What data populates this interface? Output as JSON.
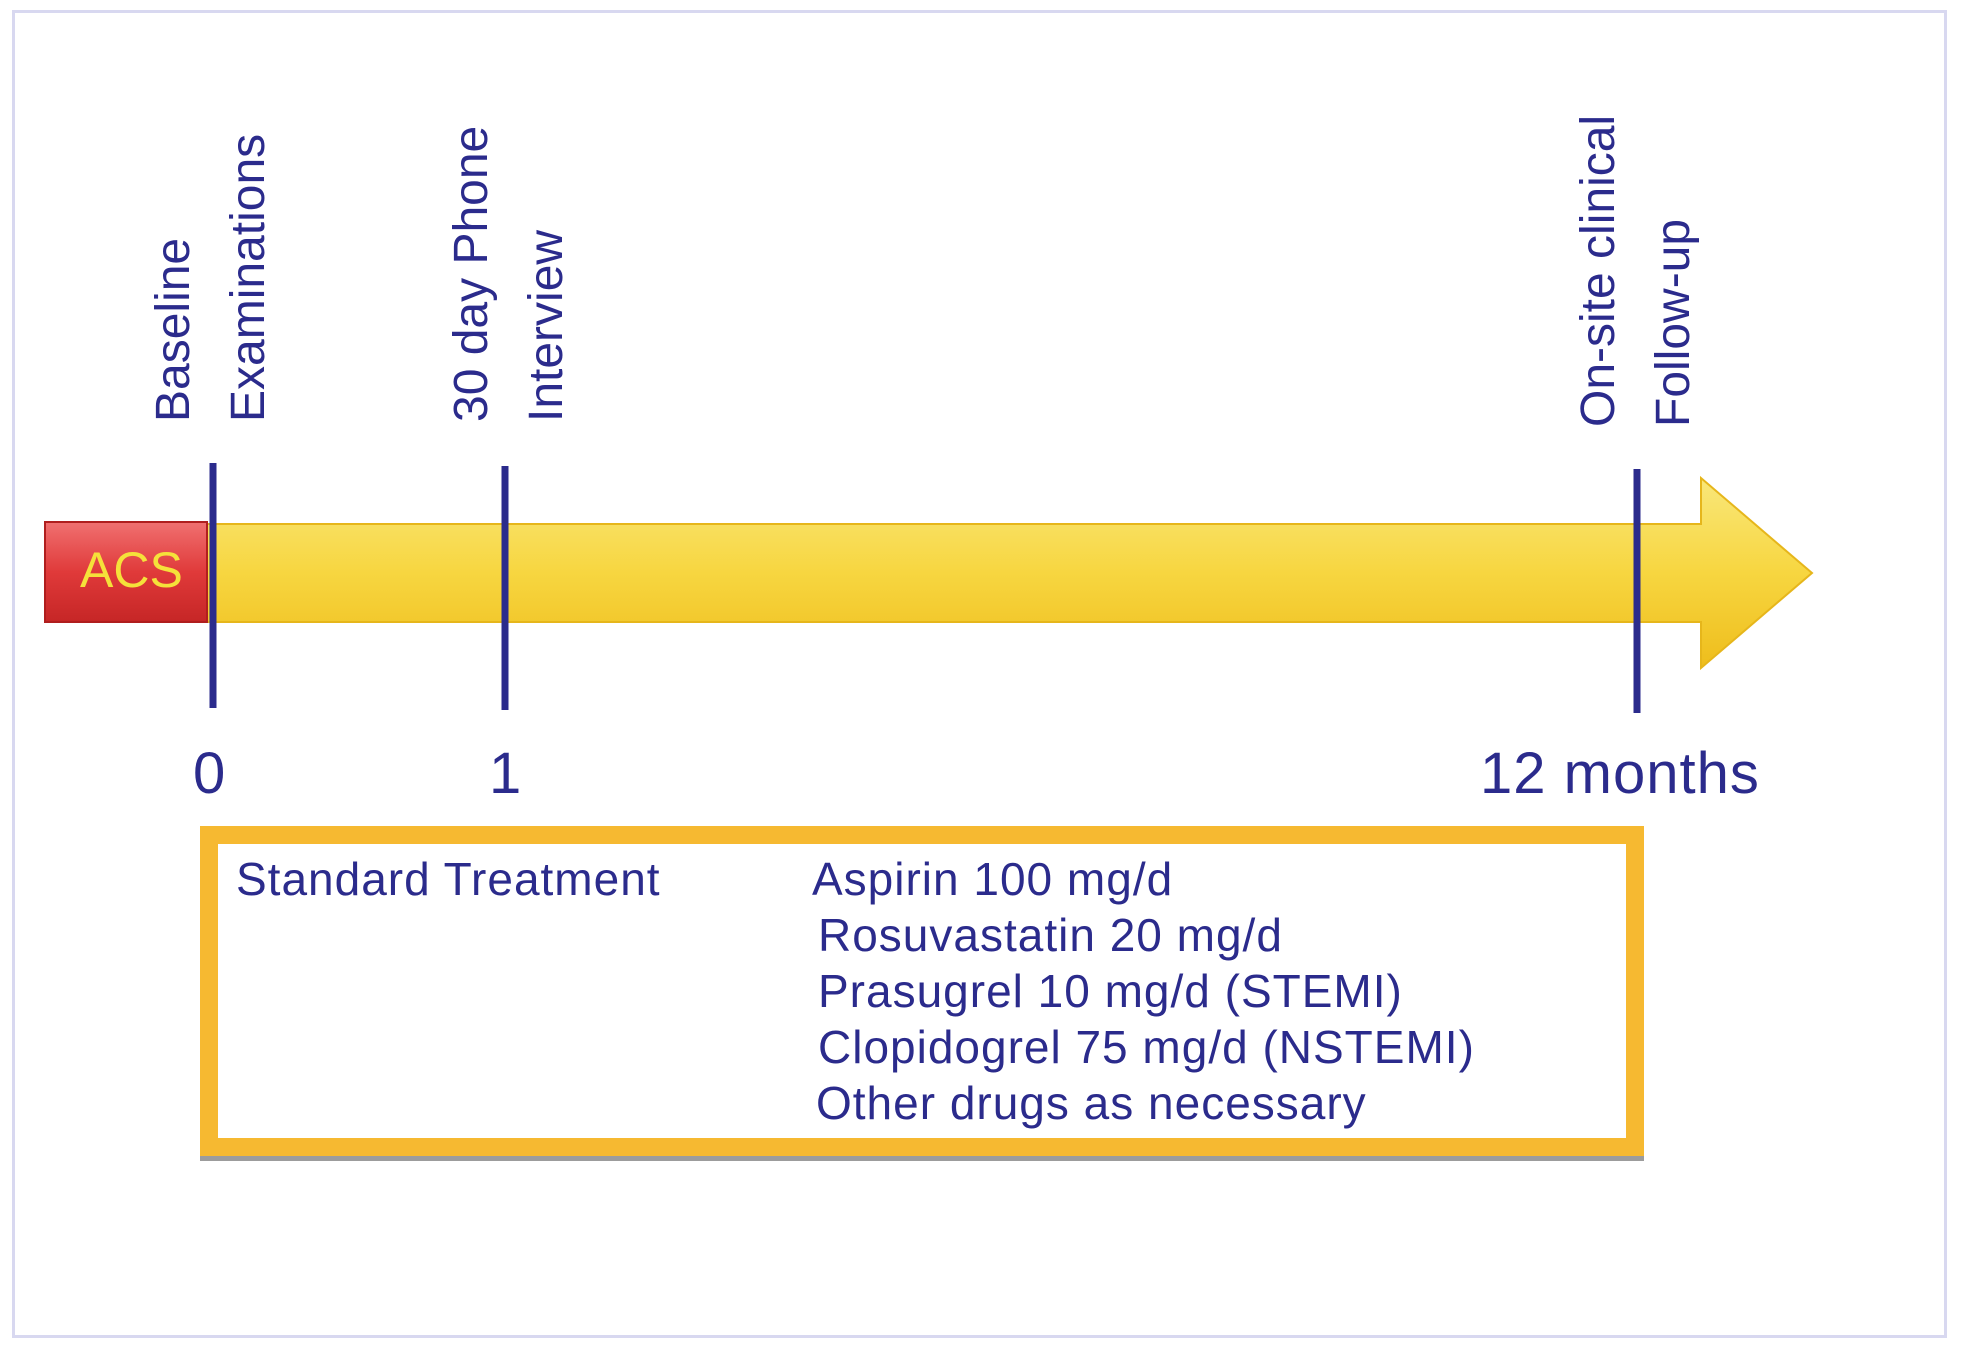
{
  "acs_label": "ACS",
  "milestones": [
    {
      "line1": "Baseline",
      "line2": "Examinations",
      "tick": "0"
    },
    {
      "line1": "30 day Phone",
      "line2": "Interview",
      "tick": "1"
    },
    {
      "line1": "On-site clinical",
      "line2": "Follow-up",
      "tick": "12 months"
    }
  ],
  "treatment": {
    "heading": "Standard Treatment",
    "items": [
      "Aspirin 100 mg/d",
      "Rosuvastatin 20 mg/d",
      "Prasugrel 10 mg/d (STEMI)",
      "Clopidogrel 75 mg/d (NSTEMI)",
      "Other drugs as necessary"
    ]
  },
  "colors": {
    "arrow": "#f7d640",
    "acs_box": "#e03a3a",
    "text": "#2b2b8c",
    "box_border": "#f6b931"
  }
}
